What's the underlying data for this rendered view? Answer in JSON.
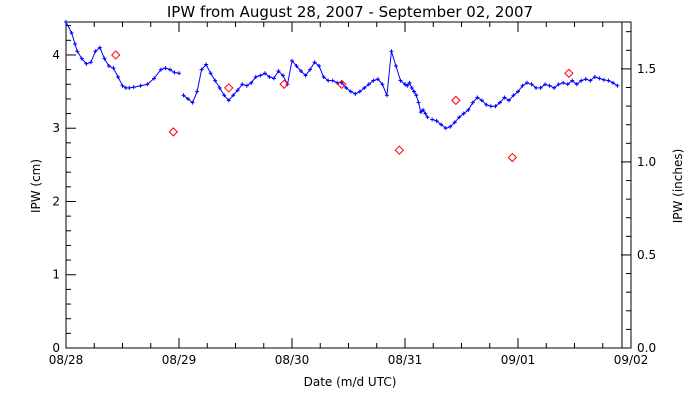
{
  "chart_data": {
    "type": "scatter",
    "title": "IPW from August 28, 2007 - September 02, 2007",
    "xlabel": "Date (m/d UTC)",
    "ylabel": "IPW (cm)",
    "ylabel_right": "IPW (inches)",
    "x_range": [
      "08/28",
      "09/02"
    ],
    "x_ticks": [
      "08/28",
      "08/29",
      "08/30",
      "08/31",
      "09/01",
      "09/02"
    ],
    "ylim": [
      0,
      4.45
    ],
    "y_ticks": [
      "0",
      "1",
      "2",
      "3",
      "4"
    ],
    "y_right_ticks": [
      "0.0",
      "0.5",
      "1.0",
      "1.5"
    ],
    "right_axis_scale": "inches = cm / 2.54",
    "grid": false,
    "x_units": "days since 08/28 00:00 UTC",
    "series": [
      {
        "marker": "plus",
        "line": true,
        "color": "#0000ff",
        "segments": [
          {
            "x": [
              0.0,
              0.05,
              0.08,
              0.1,
              0.14,
              0.18,
              0.22,
              0.26,
              0.3,
              0.34,
              0.38,
              0.42,
              0.46,
              0.5,
              0.53,
              0.56,
              0.6,
              0.66,
              0.72,
              0.78,
              0.84,
              0.88,
              0.92,
              0.96,
              1.0
            ],
            "y": [
              4.45,
              4.3,
              4.15,
              4.05,
              3.95,
              3.88,
              3.9,
              4.05,
              4.1,
              3.95,
              3.85,
              3.82,
              3.7,
              3.58,
              3.55,
              3.55,
              3.56,
              3.58,
              3.6,
              3.68,
              3.8,
              3.82,
              3.8,
              3.76,
              3.75
            ]
          },
          {
            "x": [
              1.04,
              1.08,
              1.12,
              1.16,
              1.2,
              1.24,
              1.28,
              1.32,
              1.36,
              1.4,
              1.44,
              1.48,
              1.52,
              1.56,
              1.6,
              1.64,
              1.68,
              1.72,
              1.76,
              1.8,
              1.84,
              1.88,
              1.92,
              1.96,
              2.0,
              2.04,
              2.08,
              2.12,
              2.16,
              2.2,
              2.24,
              2.28,
              2.32,
              2.36,
              2.4,
              2.44,
              2.48,
              2.52,
              2.56,
              2.6,
              2.64,
              2.68,
              2.72,
              2.76,
              2.8,
              2.84,
              2.88,
              2.92,
              2.96,
              3.0,
              3.02,
              3.04,
              3.06,
              3.08,
              3.1,
              3.12,
              3.14,
              3.16,
              3.18,
              3.2
            ],
            "y": [
              3.45,
              3.4,
              3.35,
              3.5,
              3.8,
              3.87,
              3.75,
              3.65,
              3.55,
              3.45,
              3.38,
              3.45,
              3.52,
              3.6,
              3.58,
              3.62,
              3.7,
              3.72,
              3.75,
              3.7,
              3.68,
              3.78,
              3.72,
              3.6,
              3.92,
              3.85,
              3.78,
              3.72,
              3.8,
              3.9,
              3.85,
              3.7,
              3.65,
              3.65,
              3.62,
              3.62,
              3.55,
              3.5,
              3.47,
              3.5,
              3.55,
              3.6,
              3.65,
              3.67,
              3.6,
              3.45,
              4.05,
              3.85,
              3.65,
              3.6,
              3.58,
              3.62,
              3.55,
              3.5,
              3.45,
              3.35,
              3.22,
              3.25,
              3.2,
              3.15
            ]
          },
          {
            "x": [
              3.24,
              3.28,
              3.32,
              3.36,
              3.4,
              3.44,
              3.48,
              3.52,
              3.56,
              3.6,
              3.64,
              3.68,
              3.72,
              3.76,
              3.8,
              3.84,
              3.88,
              3.92,
              3.96,
              4.0,
              4.04,
              4.08,
              4.12,
              4.16,
              4.2,
              4.24,
              4.28,
              4.32,
              4.36,
              4.4,
              4.44,
              4.48,
              4.52,
              4.56,
              4.6,
              4.64,
              4.68,
              4.72,
              4.76,
              4.8,
              4.84,
              4.88
            ],
            "y": [
              3.12,
              3.1,
              3.05,
              3.0,
              3.02,
              3.08,
              3.15,
              3.2,
              3.25,
              3.35,
              3.42,
              3.38,
              3.32,
              3.3,
              3.3,
              3.35,
              3.42,
              3.38,
              3.45,
              3.5,
              3.58,
              3.62,
              3.6,
              3.55,
              3.55,
              3.6,
              3.58,
              3.55,
              3.6,
              3.62,
              3.6,
              3.65,
              3.6,
              3.65,
              3.67,
              3.65,
              3.7,
              3.68,
              3.66,
              3.65,
              3.62,
              3.58
            ]
          }
        ]
      },
      {
        "marker": "diamond",
        "line": false,
        "color": "#ff0000",
        "x": [
          0.44,
          0.95,
          1.44,
          1.93,
          2.44,
          2.95,
          3.45,
          3.95,
          4.45
        ],
        "y": [
          4.0,
          2.95,
          3.55,
          3.6,
          3.6,
          2.7,
          3.38,
          2.6,
          3.75
        ]
      }
    ],
    "vertical_line_x": 4.92
  }
}
